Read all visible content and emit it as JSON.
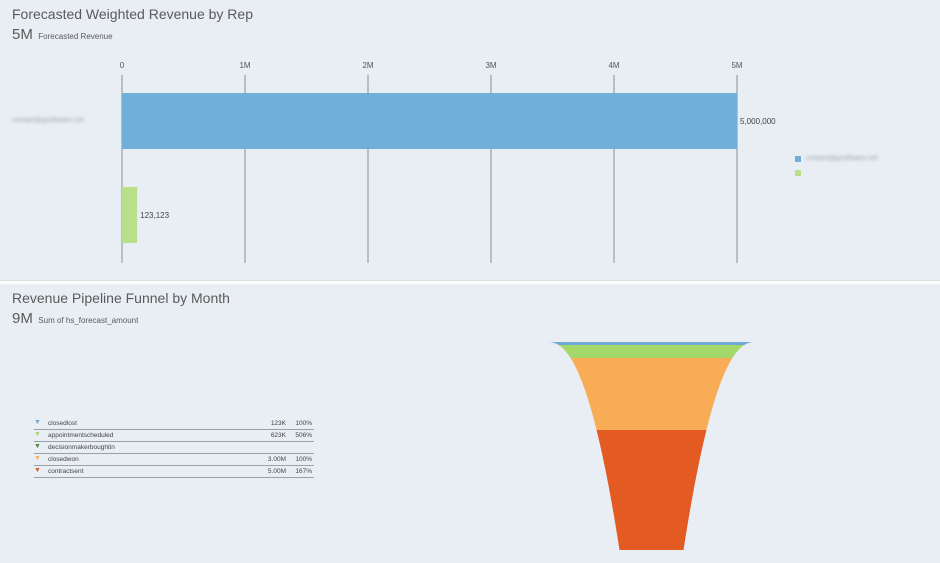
{
  "top_panel": {
    "title": "Forecasted Weighted Revenue by Rep",
    "kpi_value": "5M",
    "kpi_label": "Forecasted Revenue",
    "rep_label_blurred": "contact@gsoftware.net",
    "legend_blurred": "contact@gsoftware.net"
  },
  "bottom_panel": {
    "title": "Revenue Pipeline Funnel by Month",
    "kpi_value": "9M",
    "kpi_label": "Sum of hs_forecast_amount"
  },
  "chart_data": [
    {
      "type": "bar",
      "orientation": "horizontal",
      "title": "Forecasted Weighted Revenue by Rep",
      "xlim": [
        0,
        5000000
      ],
      "ticks": [
        {
          "value": 0,
          "label": "0"
        },
        {
          "value": 1000000,
          "label": "1M"
        },
        {
          "value": 2000000,
          "label": "2M"
        },
        {
          "value": 3000000,
          "label": "3M"
        },
        {
          "value": 4000000,
          "label": "4M"
        },
        {
          "value": 5000000,
          "label": "5M"
        }
      ],
      "grid": true,
      "series": [
        {
          "value": 5000000,
          "label": "5,000,000",
          "color": "#6fafd8"
        },
        {
          "value": 123123,
          "label": "123,123",
          "color": "#b8e08a"
        }
      ],
      "legend_placement": "right"
    },
    {
      "type": "funnel",
      "title": "Revenue Pipeline Funnel by Month",
      "stages": [
        {
          "name": "closedlost",
          "value_label": "123K",
          "pct": "100%",
          "color": "#6fa9d6",
          "arrow_color": "#6fa9d6"
        },
        {
          "name": "appointmentscheduled",
          "value_label": "623K",
          "pct": "506%",
          "color": "#a4d86a",
          "arrow_color": "#a4d86a"
        },
        {
          "name": "decisionmakerboughtin",
          "value_label": "",
          "pct": "",
          "color": "#4d8a3a",
          "arrow_color": "#4d8a3a"
        },
        {
          "name": "closedwon",
          "value_label": "3.00M",
          "pct": "100%",
          "color": "#f9ac56",
          "arrow_color": "#f9ac56"
        },
        {
          "name": "contractsent",
          "value_label": "5.00M",
          "pct": "167%",
          "color": "#e35a22",
          "arrow_color": "#e35a22"
        }
      ]
    }
  ]
}
